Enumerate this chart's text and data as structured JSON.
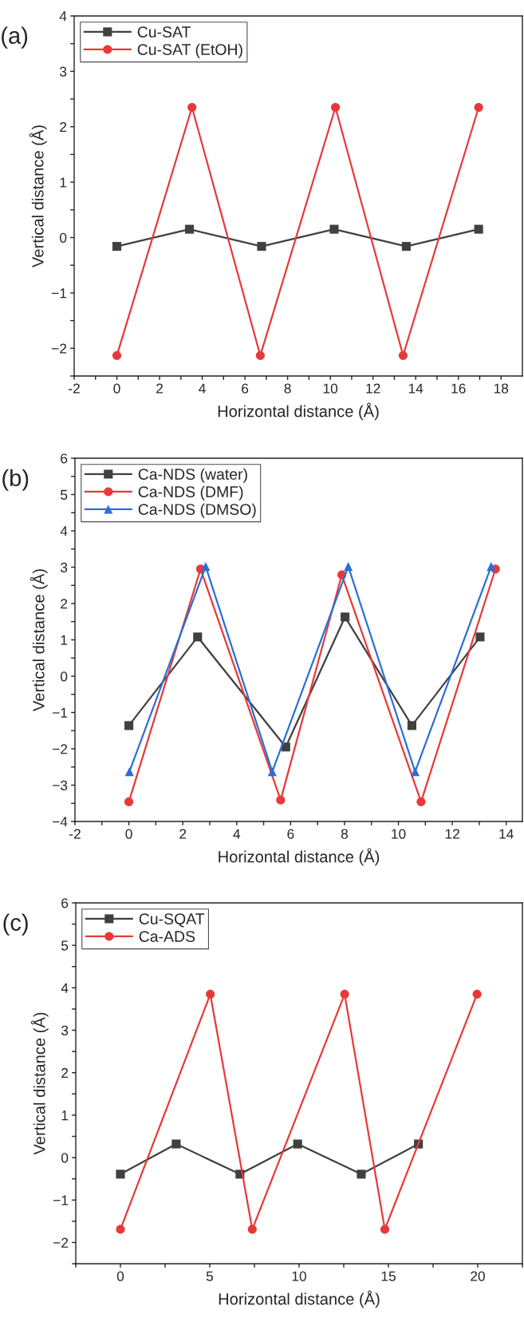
{
  "chart_data": [
    {
      "type": "line",
      "xlabel": "Horizontal distance (Å)",
      "ylabel": "Vertical distance (Å)",
      "annotations": [
        "(a)"
      ],
      "legend": "top left",
      "grid": false,
      "xlim": [
        -2,
        19
      ],
      "ylim": [
        -2.5,
        4
      ],
      "xticks": [
        -2,
        {
          "value": -1,
          "label": null
        },
        0,
        {
          "value": 1,
          "label": null
        },
        2,
        {
          "value": 3,
          "label": null
        },
        4,
        {
          "value": 5,
          "label": null
        },
        6,
        {
          "value": 7,
          "label": null
        },
        8,
        {
          "value": 9,
          "label": null
        },
        10,
        {
          "value": 11,
          "label": null
        },
        12,
        {
          "value": 13,
          "label": null
        },
        14,
        {
          "value": 15,
          "label": null
        },
        16,
        {
          "value": 17,
          "label": null
        },
        18
      ],
      "yticks": [
        {
          "value": -2.5,
          "label": null
        },
        {
          "value": -2,
          "label": "−2"
        },
        {
          "value": -1.5,
          "label": null
        },
        {
          "value": -1,
          "label": "−1"
        },
        {
          "value": -0.5,
          "label": null
        },
        0,
        {
          "value": 0.5,
          "label": null
        },
        1,
        {
          "value": 1.5,
          "label": null
        },
        2,
        {
          "value": 2.5,
          "label": null
        },
        3,
        {
          "value": 3.5,
          "label": null
        },
        4
      ],
      "series": [
        {
          "name": "Cu-SAT",
          "color": "#404040",
          "marker": "square",
          "x": [
            0,
            3.4,
            6.78,
            10.18,
            13.56,
            16.95
          ],
          "values": [
            -0.16,
            0.15,
            -0.16,
            0.15,
            -0.16,
            0.15
          ]
        },
        {
          "name": "Cu-SAT (EtOH)",
          "color": "#e8393a",
          "marker": "circle",
          "x": [
            0,
            3.52,
            6.72,
            10.24,
            13.41,
            16.95
          ],
          "values": [
            -2.13,
            2.35,
            -2.13,
            2.35,
            -2.13,
            2.35
          ]
        }
      ]
    },
    {
      "type": "line",
      "xlabel": "Horizontal distance (Å)",
      "ylabel": "Vertical distance (Å)",
      "annotations": [
        "(b)"
      ],
      "legend": "top left",
      "grid": false,
      "xlim": [
        -2,
        14.6
      ],
      "ylim": [
        -4,
        6
      ],
      "xticks": [
        -2,
        {
          "value": -1,
          "label": null
        },
        0,
        {
          "value": 1,
          "label": null
        },
        2,
        {
          "value": 3,
          "label": null
        },
        4,
        {
          "value": 5,
          "label": null
        },
        6,
        {
          "value": 7,
          "label": null
        },
        8,
        {
          "value": 9,
          "label": null
        },
        10,
        {
          "value": 11,
          "label": null
        },
        12,
        {
          "value": 13,
          "label": null
        },
        14
      ],
      "yticks": [
        {
          "value": -4,
          "label": "−4"
        },
        {
          "value": -3.5,
          "label": null
        },
        {
          "value": -3,
          "label": "−3"
        },
        {
          "value": -2.5,
          "label": null
        },
        {
          "value": -2,
          "label": "−2"
        },
        {
          "value": -1.5,
          "label": null
        },
        {
          "value": -1,
          "label": "−1"
        },
        {
          "value": -0.5,
          "label": null
        },
        0,
        {
          "value": 0.5,
          "label": null
        },
        1,
        {
          "value": 1.5,
          "label": null
        },
        2,
        {
          "value": 2.5,
          "label": null
        },
        3,
        {
          "value": 3.5,
          "label": null
        },
        4,
        {
          "value": 4.5,
          "label": null
        },
        5,
        {
          "value": 5.5,
          "label": null
        },
        6
      ],
      "series": [
        {
          "name": "Ca-NDS (water)",
          "color": "#404040",
          "marker": "square",
          "x": [
            0,
            2.55,
            5.82,
            8.02,
            10.5,
            13.03
          ],
          "values": [
            -1.36,
            1.08,
            -1.95,
            1.63,
            -1.36,
            1.08
          ]
        },
        {
          "name": "Ca-NDS (DMF)",
          "color": "#e8393a",
          "marker": "circle",
          "x": [
            0,
            2.66,
            5.63,
            7.9,
            10.84,
            13.6
          ],
          "values": [
            -3.46,
            2.95,
            -3.41,
            2.79,
            -3.46,
            2.95
          ]
        },
        {
          "name": "Ca-NDS (DMSO)",
          "color": "#2a6fd6",
          "marker": "triangle",
          "x": [
            0.02,
            2.85,
            5.32,
            8.14,
            10.62,
            13.44
          ],
          "values": [
            -2.63,
            3.02,
            -2.63,
            3.02,
            -2.63,
            3.02
          ]
        }
      ]
    },
    {
      "type": "line",
      "xlabel": "Horizontal distance (Å)",
      "ylabel": "Vertical distance (Å)",
      "annotations": [
        "(c)"
      ],
      "legend": "top left",
      "grid": false,
      "xlim": [
        -2.5,
        22.5
      ],
      "ylim": [
        -2.5,
        6
      ],
      "xticks": [
        {
          "value": -2.5,
          "label": null
        },
        0,
        {
          "value": 2.5,
          "label": null
        },
        5,
        {
          "value": 7.5,
          "label": null
        },
        10,
        {
          "value": 12.5,
          "label": null
        },
        15,
        {
          "value": 17.5,
          "label": null
        },
        20,
        {
          "value": 22.5,
          "label": null
        }
      ],
      "yticks": [
        {
          "value": -2.5,
          "label": null
        },
        {
          "value": -2,
          "label": "−2"
        },
        {
          "value": -1.5,
          "label": null
        },
        {
          "value": -1,
          "label": "−1"
        },
        {
          "value": -0.5,
          "label": null
        },
        0,
        {
          "value": 0.5,
          "label": null
        },
        1,
        {
          "value": 1.5,
          "label": null
        },
        2,
        {
          "value": 2.5,
          "label": null
        },
        3,
        {
          "value": 3.5,
          "label": null
        },
        4,
        {
          "value": 4.5,
          "label": null
        },
        5,
        {
          "value": 5.5,
          "label": null
        },
        6
      ],
      "series": [
        {
          "name": "Cu-SQAT",
          "color": "#404040",
          "marker": "square",
          "x": [
            0,
            3.12,
            6.69,
            9.92,
            13.48,
            16.68
          ],
          "values": [
            -0.39,
            0.32,
            -0.39,
            0.32,
            -0.39,
            0.32
          ]
        },
        {
          "name": "Ca-ADS",
          "color": "#e8393a",
          "marker": "circle",
          "x": [
            0,
            5.03,
            7.38,
            12.55,
            14.8,
            19.96
          ],
          "values": [
            -1.69,
            3.85,
            -1.69,
            3.85,
            -1.69,
            3.85
          ]
        }
      ]
    }
  ]
}
